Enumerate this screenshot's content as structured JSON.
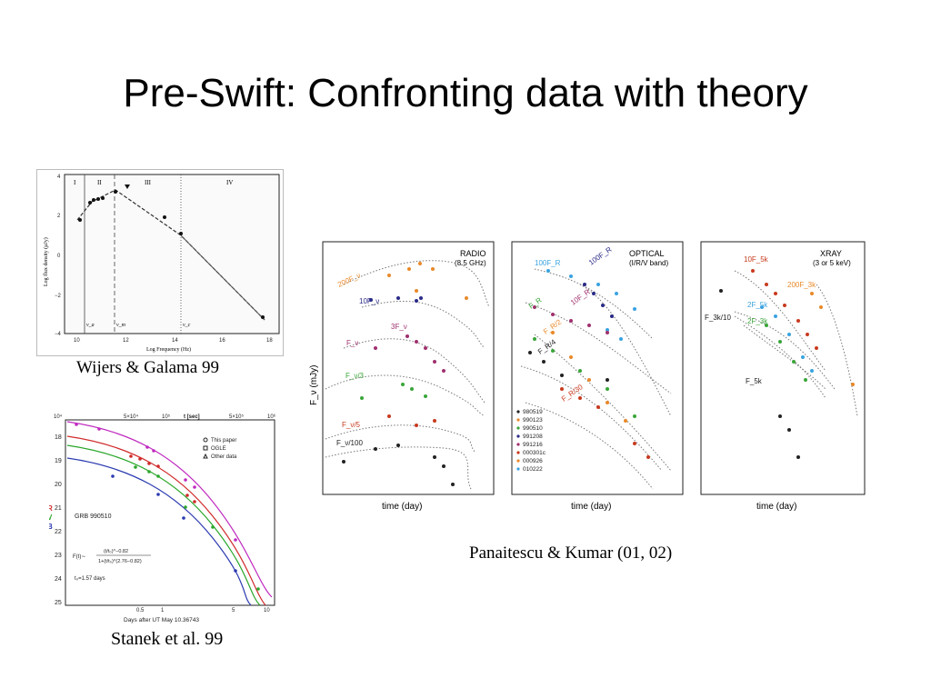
{
  "slide": {
    "title": "Pre-Swift: Confronting data with theory"
  },
  "figures": {
    "wijers": {
      "caption": "Wijers & Galama 99",
      "ylabel": "Log flux density (μJy)",
      "xlabel": "Log Frequency (Hz)",
      "regions": [
        "I",
        "II",
        "III",
        "IV"
      ],
      "break_labels": [
        "ν_a",
        "ν_m",
        "ν_c"
      ],
      "xticks": [
        "10",
        "12",
        "14",
        "16",
        "18"
      ],
      "yticks": [
        "4",
        "2",
        "0",
        "−2",
        "−4"
      ]
    },
    "stanek": {
      "caption": "Stanek et al. 99",
      "top_axis_label": "t [sec]",
      "top_ticks": [
        "10⁴",
        "5×10⁴",
        "10⁵",
        "5×10⁵",
        "10⁶"
      ],
      "yticks": [
        "18",
        "19",
        "20",
        "21",
        "22",
        "23",
        "24",
        "25"
      ],
      "bottom_ticks": [
        "0.5",
        "1",
        "5",
        "10"
      ],
      "xlabel": "Days after UT May 10.36743",
      "ylabel_letters": [
        "B",
        "V",
        "R",
        "I"
      ],
      "legend": [
        "This paper",
        "OGLE",
        "Other data"
      ],
      "grb": "GRB 990510",
      "formula_lhs": "F(t)∼",
      "formula_num": "(t/t₀)^−0.82",
      "formula_den": "1+(t/t₀)^(2.76−0.82)",
      "t0_label": "t₀=1.57 days"
    },
    "panaitescu": {
      "caption": "Panaitescu & Kumar (01, 02)",
      "ylabel": "F_ν (mJy)",
      "xlabel": "time (day)",
      "panels": [
        {
          "title": "RADIO",
          "subtitle": "(8.5 GHz)",
          "labels": [
            "200F_ν",
            "10F_ν",
            "3F_ν",
            "F_ν",
            "F_ν/3",
            "F_ν/5",
            "F_ν/100"
          ]
        },
        {
          "title": "OPTICAL",
          "subtitle": "(I/R/V band)",
          "labels": [
            "100F_R",
            "100F_R",
            "10F_R",
            "F_R",
            "F_R/2",
            "F_R/4",
            "F_R/30"
          ]
        },
        {
          "title": "XRAY",
          "subtitle": "(3 or 5 keV)",
          "labels": [
            "10F_5k",
            "200F_3k",
            "2F_5k",
            "2F_3k",
            "F_3k/10",
            "F_5k"
          ]
        }
      ],
      "legend": [
        "980519",
        "990123",
        "990510",
        "991208",
        "991216",
        "000301c",
        "000926",
        "010222"
      ],
      "colors": {
        "black": "#222222",
        "orange": "#e8892a",
        "navy": "#2a2a88",
        "magenta": "#a0306e",
        "green": "#3aa63a",
        "red": "#c83a1e",
        "cyan": "#3aa3e0",
        "purple": "#6a2a8a"
      }
    }
  }
}
